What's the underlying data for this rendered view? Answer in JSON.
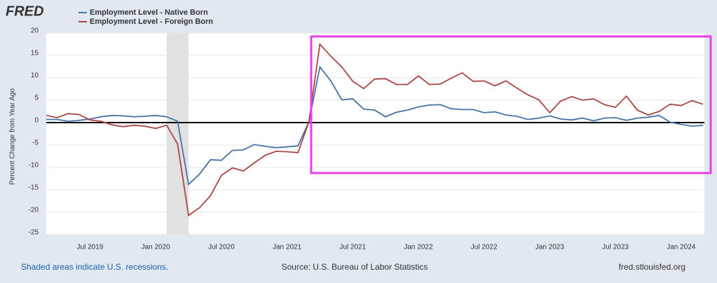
{
  "chart_data": {
    "type": "line",
    "logo": "FRED",
    "y_label": "Percent Change from Year Ago",
    "note": "Shaded areas indicate U.S. recessions.",
    "source": "Source: U.S. Bureau of Labor Statistics",
    "website": "fred.stlouisfed.org",
    "x": [
      "2019-03",
      "2019-04",
      "2019-05",
      "2019-06",
      "2019-07",
      "2019-08",
      "2019-09",
      "2019-10",
      "2019-11",
      "2019-12",
      "2020-01",
      "2020-02",
      "2020-03",
      "2020-04",
      "2020-05",
      "2020-06",
      "2020-07",
      "2020-08",
      "2020-09",
      "2020-10",
      "2020-11",
      "2020-12",
      "2021-01",
      "2021-02",
      "2021-03",
      "2021-04",
      "2021-05",
      "2021-06",
      "2021-07",
      "2021-08",
      "2021-09",
      "2021-10",
      "2021-11",
      "2021-12",
      "2022-01",
      "2022-02",
      "2022-03",
      "2022-04",
      "2022-05",
      "2022-06",
      "2022-07",
      "2022-08",
      "2022-09",
      "2022-10",
      "2022-11",
      "2022-12",
      "2023-01",
      "2023-02",
      "2023-03",
      "2023-04",
      "2023-05",
      "2023-06",
      "2023-07",
      "2023-08",
      "2023-09",
      "2023-10",
      "2023-11",
      "2023-12",
      "2024-01",
      "2024-02",
      "2024-03"
    ],
    "series": [
      {
        "name": "Employment Level - Native Born",
        "color": "#4572a7",
        "values": [
          0.7,
          0.7,
          0.3,
          0.5,
          0.8,
          1.3,
          1.6,
          1.5,
          1.3,
          1.4,
          1.6,
          1.3,
          0.3,
          -13.8,
          -11.5,
          -8.3,
          -8.4,
          -6.2,
          -6.1,
          -4.9,
          -5.3,
          -5.6,
          -5.4,
          -5.2,
          0.2,
          12.4,
          9.3,
          5.1,
          5.3,
          3.0,
          2.8,
          1.3,
          2.3,
          2.8,
          3.5,
          3.9,
          4.0,
          3.1,
          2.9,
          2.9,
          2.2,
          2.4,
          1.7,
          1.4,
          0.7,
          1.0,
          1.5,
          0.8,
          0.6,
          1.0,
          0.4,
          1.0,
          1.1,
          0.5,
          1.0,
          1.2,
          1.6,
          0.1,
          -0.4,
          -0.8,
          -0.6
        ]
      },
      {
        "name": "Employment Level - Foreign Born",
        "color": "#aa4643",
        "values": [
          1.6,
          1.1,
          2.0,
          1.8,
          0.6,
          0.3,
          -0.5,
          -0.9,
          -0.6,
          -0.8,
          -1.3,
          -0.6,
          -4.8,
          -20.7,
          -19.0,
          -16.3,
          -11.8,
          -10.1,
          -10.8,
          -9.0,
          -7.3,
          -6.4,
          -6.5,
          -6.7,
          0.2,
          17.5,
          14.8,
          12.4,
          9.2,
          7.6,
          9.7,
          9.8,
          8.5,
          8.5,
          10.4,
          8.5,
          8.6,
          9.9,
          11.1,
          9.2,
          9.3,
          8.2,
          9.3,
          7.7,
          6.2,
          5.1,
          2.2,
          4.8,
          5.8,
          5.0,
          5.3,
          4.0,
          3.4,
          5.9,
          2.8,
          1.7,
          2.5,
          4.1,
          3.8,
          4.9,
          4.1
        ]
      }
    ],
    "xlim": [
      "2019-03",
      "2024-03"
    ],
    "xticks": [
      {
        "value": "2019-07",
        "label": "Jul 2019"
      },
      {
        "value": "2020-01",
        "label": "Jan 2020"
      },
      {
        "value": "2020-07",
        "label": "Jul 2020"
      },
      {
        "value": "2021-01",
        "label": "Jan 2021"
      },
      {
        "value": "2021-07",
        "label": "Jul 2021"
      },
      {
        "value": "2022-01",
        "label": "Jan 2022"
      },
      {
        "value": "2022-07",
        "label": "Jul 2022"
      },
      {
        "value": "2023-01",
        "label": "Jan 2023"
      },
      {
        "value": "2023-07",
        "label": "Jul 2023"
      },
      {
        "value": "2024-01",
        "label": "Jan 2024"
      }
    ],
    "ylim": [
      -25,
      20
    ],
    "yticks": [
      -25,
      -20,
      -15,
      -10,
      -5,
      0,
      5,
      10,
      15,
      20
    ],
    "recessions": [
      [
        "2020-02",
        "2020-04"
      ]
    ],
    "grid": true
  }
}
